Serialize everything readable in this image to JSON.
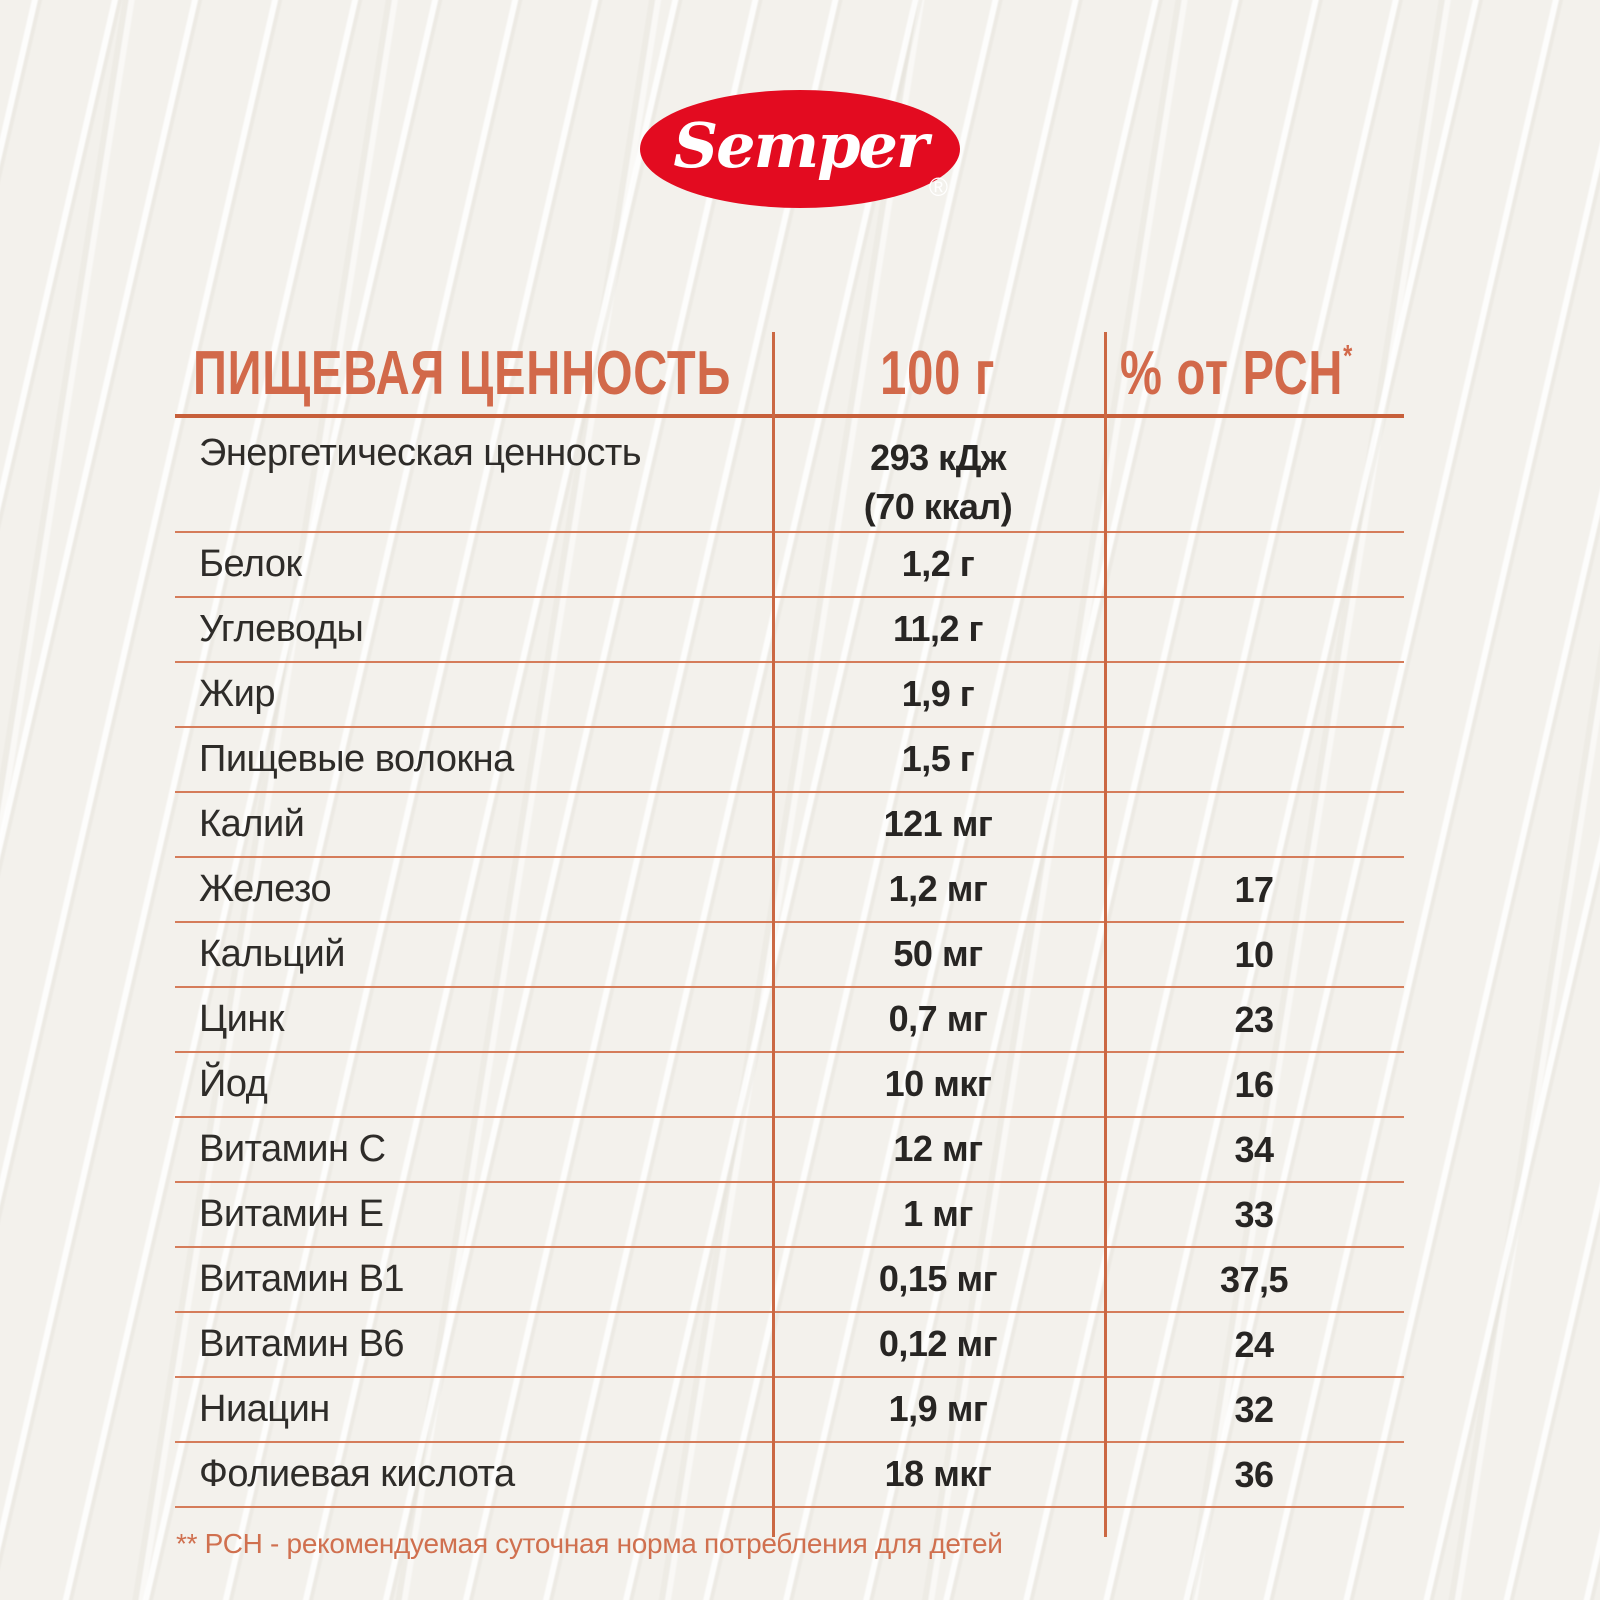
{
  "logo": {
    "brand": "Semper",
    "registered": "®",
    "oval_color": "#e30b20",
    "text_color": "#ffffff"
  },
  "table": {
    "header": {
      "col1": "ПИЩЕВАЯ ЦЕННОСТЬ",
      "col2": "100 г",
      "col3": "% от РСН",
      "col3_sup": "*"
    },
    "rows": [
      {
        "label": "Энергетическая ценность",
        "value": "293 кДж",
        "value2": "(70 ккал)",
        "rda": ""
      },
      {
        "label": "Белок",
        "value": "1,2 г",
        "rda": ""
      },
      {
        "label": "Углеводы",
        "value": "11,2 г",
        "rda": ""
      },
      {
        "label": "Жир",
        "value": "1,9 г",
        "rda": ""
      },
      {
        "label": "Пищевые волокна",
        "value": "1,5 г",
        "rda": ""
      },
      {
        "label": "Калий",
        "value": "121 мг",
        "rda": ""
      },
      {
        "label": "Железо",
        "value": "1,2 мг",
        "rda": "17"
      },
      {
        "label": "Кальций",
        "value": "50 мг",
        "rda": "10"
      },
      {
        "label": "Цинк",
        "value": "0,7 мг",
        "rda": "23"
      },
      {
        "label": "Йод",
        "value": "10 мкг",
        "rda": "16"
      },
      {
        "label": "Витамин C",
        "value": "12 мг",
        "rda": "34"
      },
      {
        "label": "Витамин E",
        "value": "1 мг",
        "rda": "33"
      },
      {
        "label": "Витамин B1",
        "value": "0,15 мг",
        "rda": "37,5"
      },
      {
        "label": "Витамин B6",
        "value": "0,12 мг",
        "rda": "24"
      },
      {
        "label": "Ниацин",
        "value": "1,9 мг",
        "rda": "32"
      },
      {
        "label": "Фолиевая кислота",
        "value": "18 мкг",
        "rda": "36"
      }
    ]
  },
  "footnote": "** РСН - рекомендуемая суточная норма потребления для детей",
  "colors": {
    "accent_orange": "#d2694a",
    "header_rule": "#c75f3a",
    "row_rule": "#d57c5a",
    "column_rule": "#cb6843",
    "text_dark": "#2e2c29",
    "logo_red": "#e30b20",
    "background": "#f3f1ec"
  }
}
